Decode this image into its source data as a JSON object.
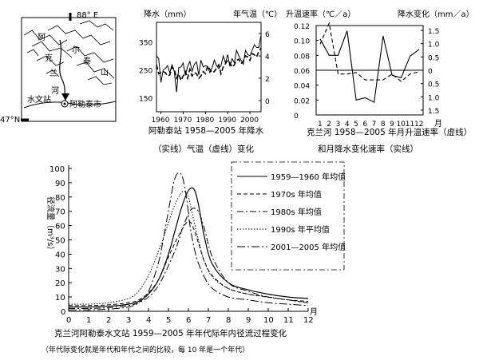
{
  "map": {
    "lon_label": "88° E",
    "lat_label": "47°N",
    "place_labels": [
      "阿",
      "克",
      "兰",
      "河",
      "尔",
      "泰",
      "山"
    ],
    "station_label": "水文站",
    "city_label": "阿勒泰市"
  },
  "chart_data": [
    {
      "type": "line",
      "id": "precip-temp",
      "y_left_label": "降水（mm）",
      "y_right_label": "年气温（℃）",
      "caption": [
        "阿勒泰站 1958—2005 年降水",
        "（实线）气温（虚线）变化"
      ],
      "x_ticks": [
        "1960",
        "1970",
        "1980",
        "1990",
        "2000"
      ],
      "xlim": [
        1958,
        2005
      ],
      "y_left_ticks": [
        "350",
        "250",
        "150"
      ],
      "ylim_left": [
        100,
        420
      ],
      "y_right_ticks": [
        "6",
        "4",
        "2",
        "0"
      ],
      "ylim_right": [
        -1,
        7
      ],
      "series": [
        {
          "style": "solid",
          "axis": "left",
          "x": [
            1958,
            1959,
            1960,
            1961,
            1962,
            1963,
            1964,
            1965,
            1966,
            1967,
            1968,
            1969,
            1970,
            1971,
            1972,
            1973,
            1974,
            1975,
            1976,
            1977,
            1978,
            1979,
            1980,
            1981,
            1982,
            1983,
            1984,
            1985,
            1986,
            1987,
            1988,
            1989,
            1990,
            1991,
            1992,
            1993,
            1994,
            1995,
            1996,
            1997,
            1998,
            1999,
            2000,
            2001,
            2002,
            2003,
            2004,
            2005
          ],
          "y": [
            300,
            290,
            205,
            250,
            255,
            265,
            240,
            268,
            245,
            170,
            258,
            260,
            275,
            230,
            262,
            280,
            245,
            270,
            278,
            232,
            285,
            260,
            265,
            262,
            240,
            258,
            285,
            265,
            255,
            265,
            300,
            275,
            305,
            262,
            290,
            275,
            320,
            300,
            285,
            270,
            320,
            305,
            300,
            320,
            340,
            330,
            330,
            375
          ]
        },
        {
          "style": "dashed",
          "axis": "right",
          "x": [
            1958,
            1959,
            1960,
            1961,
            1962,
            1963,
            1964,
            1965,
            1966,
            1967,
            1968,
            1969,
            1970,
            1971,
            1972,
            1973,
            1974,
            1975,
            1976,
            1977,
            1978,
            1979,
            1980,
            1981,
            1982,
            1983,
            1984,
            1985,
            1986,
            1987,
            1988,
            1989,
            1990,
            1991,
            1992,
            1993,
            1994,
            1995,
            1996,
            1997,
            1998,
            1999,
            2000,
            2001,
            2002,
            2003,
            2004,
            2005
          ],
          "y": [
            3.2,
            2.4,
            2.5,
            2.6,
            2.5,
            2.2,
            2.3,
            3.0,
            2.8,
            2.0,
            2.4,
            1.8,
            2.2,
            2.6,
            2.0,
            2.8,
            2.2,
            2.5,
            2.4,
            2.0,
            2.2,
            2.6,
            2.4,
            3.1,
            2.8,
            2.5,
            2.6,
            2.9,
            3.2,
            2.4,
            3.0,
            3.3,
            3.6,
            3.4,
            3.0,
            3.2,
            3.6,
            3.7,
            3.3,
            3.5,
            4.0,
            3.9,
            3.6,
            4.2,
            4.1,
            3.9,
            4.4,
            4.7
          ]
        }
      ]
    },
    {
      "type": "line",
      "id": "monthly-rates",
      "y_left_label": "升温速率（℃／a）",
      "y_right_label": "降水变化（mm／a）",
      "caption": [
        "克兰河 1958—2005 年月升温速率（虚线）",
        "和月降水变化速率（实线）"
      ],
      "x_ticks": [
        "1",
        "2",
        "3",
        "4",
        "5",
        "6",
        "7",
        "8",
        "9",
        "10",
        "11",
        "12"
      ],
      "x_unit": "月",
      "y_left_ticks": [
        "0.12",
        "0.10",
        "0.08",
        "0.06",
        "0.04",
        "0.02",
        "0"
      ],
      "ylim_left": [
        0,
        0.12
      ],
      "y_right_ticks": [
        "1.5",
        "1.0",
        "0.5",
        "0",
        "0.5",
        "1.0",
        "1.5"
      ],
      "ylim_right": [
        -1.5,
        1.5
      ],
      "series": [
        {
          "style": "solid",
          "axis": "left",
          "x": [
            1,
            2,
            3,
            4,
            5,
            6,
            7,
            8,
            9,
            10,
            11,
            12
          ],
          "y": [
            0.102,
            0.08,
            0.08,
            0.113,
            0.02,
            0.023,
            0.017,
            0.106,
            0.053,
            0.05,
            0.079,
            0.088
          ]
        },
        {
          "style": "dashed",
          "axis": "left",
          "x": [
            1,
            2,
            3,
            4,
            5,
            6,
            7,
            8,
            9,
            10,
            11,
            12
          ],
          "y": [
            0.095,
            0.123,
            0.055,
            0.055,
            0.057,
            0.047,
            0.047,
            0.047,
            0.055,
            0.045,
            0.055,
            0.058
          ]
        }
      ]
    },
    {
      "type": "line",
      "id": "runoff",
      "y_label": "径流量（m³/s）",
      "x_unit": "月",
      "x_ticks": [
        "0",
        "1",
        "2",
        "3",
        "4",
        "5",
        "6",
        "7",
        "8",
        "9",
        "10",
        "11",
        "12"
      ],
      "y_ticks": [
        "100",
        "90",
        "80",
        "70",
        "60",
        "50",
        "40",
        "30",
        "20",
        "10",
        "0"
      ],
      "xlim": [
        0,
        12
      ],
      "ylim": [
        0,
        100
      ],
      "caption": [
        "克兰河阿勒泰水文站 1959—2005 年年代际年内径流过程变化",
        "（年代际变化就是年代和年代之间的比较，每 10 年是一个年代）"
      ],
      "series": [
        {
          "name": "1959—1960 年均值",
          "style": "solid",
          "x": [
            0,
            1,
            2,
            3,
            3.5,
            4,
            4.5,
            5,
            5.3,
            5.6,
            5.9,
            6.1,
            6.3,
            6.5,
            6.8,
            7.2,
            8,
            9,
            10,
            11,
            12
          ],
          "y": [
            3,
            3,
            3.5,
            5,
            7,
            12,
            22,
            40,
            55,
            70,
            82,
            86,
            85,
            75,
            52,
            33,
            20,
            15,
            12,
            10,
            9
          ]
        },
        {
          "name": "1970s 年均值",
          "style": "dashed",
          "x": [
            0,
            1,
            2,
            3,
            3.5,
            4,
            4.5,
            5,
            5.4,
            5.8,
            6,
            6.2,
            6.5,
            6.8,
            7.2,
            8,
            9,
            10,
            11,
            12
          ],
          "y": [
            4,
            4,
            4.5,
            6,
            8,
            13,
            22,
            38,
            50,
            60,
            63,
            60,
            48,
            35,
            25,
            16,
            12,
            10,
            8,
            7
          ]
        },
        {
          "name": "1980s 年均值",
          "style": "dashdot",
          "x": [
            0,
            1,
            2,
            3,
            3.5,
            4,
            4.5,
            5,
            5.4,
            5.7,
            6,
            6.2,
            6.5,
            6.8,
            7.2,
            8,
            9,
            10,
            11,
            12
          ],
          "y": [
            2,
            2,
            2.5,
            4,
            6,
            10,
            18,
            32,
            45,
            58,
            68,
            72,
            70,
            58,
            38,
            20,
            14,
            10,
            8,
            6
          ]
        },
        {
          "name": "1990s 年平均值",
          "style": "dotted",
          "x": [
            0,
            1,
            2,
            3,
            3.5,
            4,
            4.5,
            5,
            5.3,
            5.6,
            5.8,
            6,
            6.2,
            6.5,
            6.8,
            7.2,
            8,
            9,
            10,
            11,
            12
          ],
          "y": [
            5,
            5,
            6,
            9,
            14,
            25,
            42,
            62,
            74,
            82,
            84,
            80,
            68,
            50,
            35,
            24,
            16,
            12,
            10,
            8,
            6
          ]
        },
        {
          "name": "2001—2005 年均值",
          "style": "longdashdot",
          "x": [
            0,
            1,
            2,
            3,
            3.5,
            4,
            4.5,
            4.8,
            5.1,
            5.3,
            5.5,
            5.7,
            5.9,
            6.1,
            6.4,
            6.8,
            7.2,
            8,
            9,
            10,
            11,
            12
          ],
          "y": [
            1,
            1,
            1.5,
            3,
            6,
            14,
            34,
            55,
            78,
            92,
            97,
            94,
            80,
            58,
            38,
            24,
            16,
            10,
            8,
            6,
            5,
            4
          ]
        }
      ]
    }
  ]
}
